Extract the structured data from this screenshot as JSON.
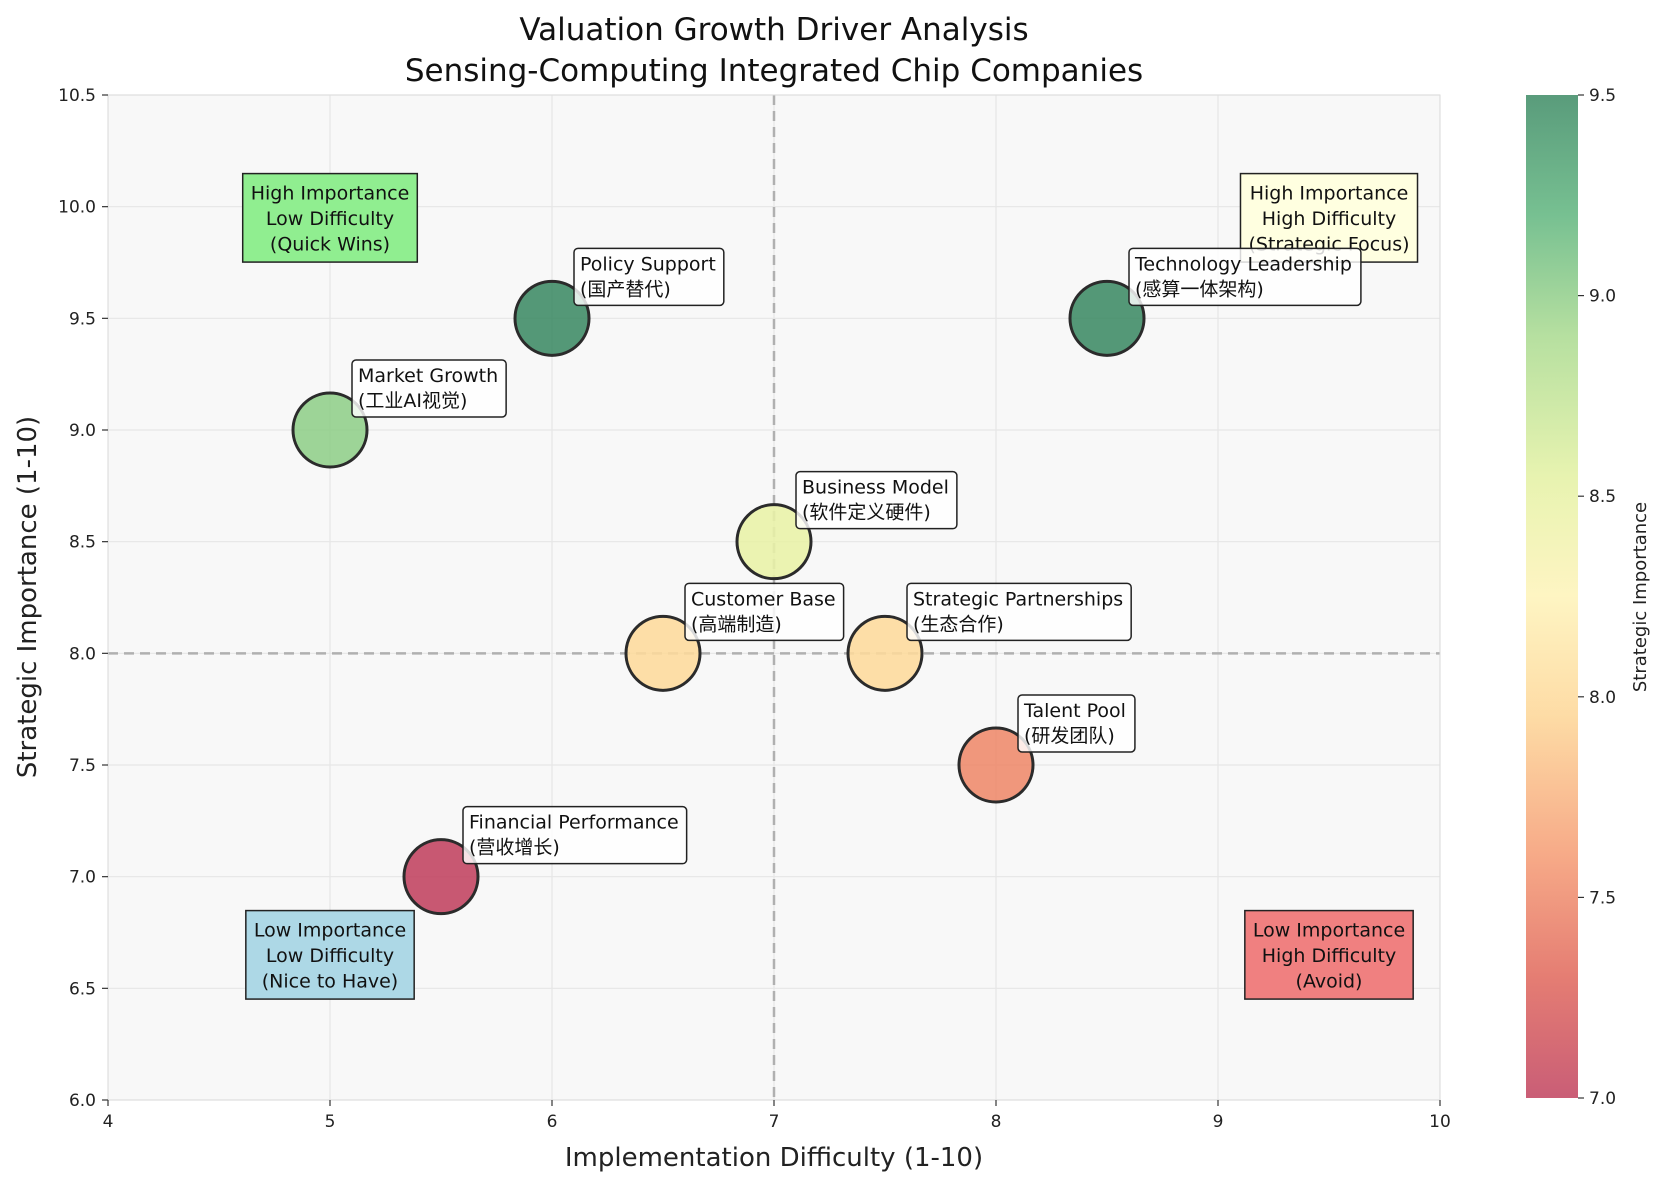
{
  "chart_data": {
    "type": "scatter",
    "title": [
      "Valuation Growth Driver Analysis",
      "Sensing-Computing Integrated Chip Companies"
    ],
    "xlabel": "Implementation Difficulty (1-10)",
    "ylabel": "Strategic Importance (1-10)",
    "xlim": [
      4,
      10
    ],
    "ylim": [
      6.0,
      10.5
    ],
    "xticks": [
      "4",
      "5",
      "6",
      "7",
      "8",
      "9",
      "10"
    ],
    "yticks": [
      "6.0",
      "6.5",
      "7.0",
      "7.5",
      "8.0",
      "8.5",
      "9.0",
      "9.5",
      "10.0",
      "10.5"
    ],
    "grid": true,
    "reference_lines": {
      "x": 7,
      "y": 8.0
    },
    "colorbar": {
      "label": "Strategic Importance",
      "range": [
        7.0,
        9.5
      ],
      "ticks": [
        "7.0",
        "7.5",
        "8.0",
        "8.5",
        "9.0",
        "9.5"
      ],
      "colormap": "RdYlGn"
    },
    "points": [
      {
        "label": "Technology Leadership",
        "sublabel": "(感算一体架构)",
        "x": 8.5,
        "y": 9.5
      },
      {
        "label": "Market Growth",
        "sublabel": "(工业AI视觉)",
        "x": 5.0,
        "y": 9.0
      },
      {
        "label": "Policy Support",
        "sublabel": "(国产替代)",
        "x": 6.0,
        "y": 9.5
      },
      {
        "label": "Customer Base",
        "sublabel": "(高端制造)",
        "x": 6.5,
        "y": 8.0
      },
      {
        "label": "Business Model",
        "sublabel": "(软件定义硬件)",
        "x": 7.0,
        "y": 8.5
      },
      {
        "label": "Talent Pool",
        "sublabel": "(研发团队)",
        "x": 8.0,
        "y": 7.5
      },
      {
        "label": "Financial Performance",
        "sublabel": "(营收增长)",
        "x": 5.5,
        "y": 7.0
      },
      {
        "label": "Strategic Partnerships",
        "sublabel": "(生态合作)",
        "x": 7.5,
        "y": 8.0
      }
    ],
    "quadrants": [
      {
        "lines": [
          "High Importance",
          "Low Difficulty",
          "(Quick Wins)"
        ],
        "x": 5.0,
        "y": 9.95,
        "color": "#90ee90"
      },
      {
        "lines": [
          "High Importance",
          "High Difficulty",
          "(Strategic Focus)"
        ],
        "x": 9.5,
        "y": 9.95,
        "color": "#ffffe0"
      },
      {
        "lines": [
          "Low Importance",
          "Low Difficulty",
          "(Nice to Have)"
        ],
        "x": 5.0,
        "y": 6.65,
        "color": "#add8e6"
      },
      {
        "lines": [
          "Low Importance",
          "High Difficulty",
          "(Avoid)"
        ],
        "x": 9.5,
        "y": 6.65,
        "color": "#f08080"
      }
    ]
  }
}
